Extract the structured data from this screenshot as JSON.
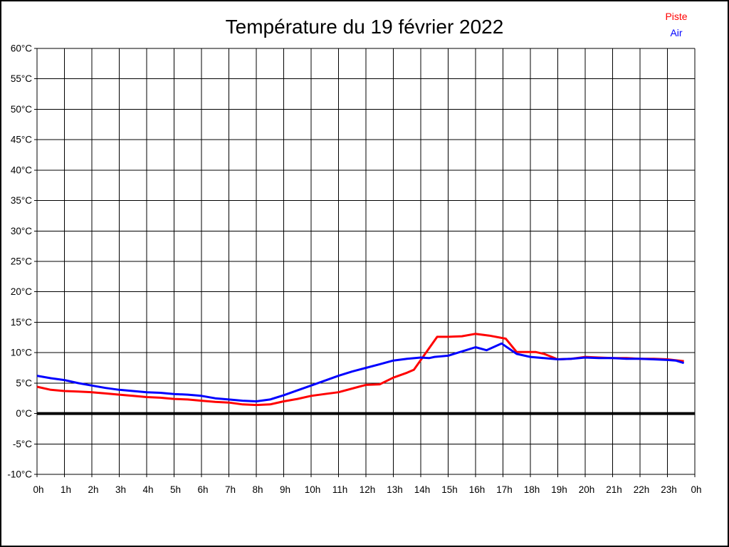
{
  "page": {
    "title": "Température du 19 février 2022"
  },
  "legend": {
    "items": [
      {
        "label": "Piste",
        "color": "#ff0000"
      },
      {
        "label": "Air",
        "color": "#0000ff"
      }
    ]
  },
  "chart_data": {
    "type": "line",
    "title": "Température du 19 février 2022",
    "xlabel": "",
    "ylabel": "",
    "x_unit": "h",
    "y_unit": "°C",
    "x_range": [
      0,
      24
    ],
    "y_range": [
      -10,
      60
    ],
    "y_step": 5,
    "grid": true,
    "grid_color": "#000000",
    "zero_line_value": 0,
    "legend_position": "top-right",
    "x_tick_labels": [
      "0h",
      "1h",
      "2h",
      "3h",
      "4h",
      "5h",
      "6h",
      "7h",
      "8h",
      "9h",
      "10h",
      "11h",
      "12h",
      "13h",
      "14h",
      "15h",
      "16h",
      "17h",
      "18h",
      "19h",
      "20h",
      "21h",
      "22h",
      "23h",
      "0h"
    ],
    "y_tick_labels": [
      "60°C",
      "55°C",
      "50°C",
      "45°C",
      "40°C",
      "35°C",
      "30°C",
      "25°C",
      "20°C",
      "15°C",
      "10°C",
      "5°C",
      "0°C",
      "-5°C",
      "-10°C"
    ],
    "series": [
      {
        "name": "Piste",
        "color": "#ff0000",
        "points": [
          [
            0,
            4.4
          ],
          [
            0.5,
            3.9
          ],
          [
            1,
            3.7
          ],
          [
            1.5,
            3.6
          ],
          [
            2,
            3.5
          ],
          [
            2.5,
            3.3
          ],
          [
            3,
            3.1
          ],
          [
            3.5,
            2.9
          ],
          [
            4,
            2.7
          ],
          [
            4.5,
            2.6
          ],
          [
            5,
            2.4
          ],
          [
            5.5,
            2.3
          ],
          [
            6,
            2.1
          ],
          [
            6.5,
            1.9
          ],
          [
            7,
            1.8
          ],
          [
            7.5,
            1.5
          ],
          [
            8,
            1.4
          ],
          [
            8.5,
            1.5
          ],
          [
            9,
            2.0
          ],
          [
            9.5,
            2.4
          ],
          [
            10,
            2.9
          ],
          [
            10.5,
            3.2
          ],
          [
            11,
            3.5
          ],
          [
            11.5,
            4.1
          ],
          [
            12,
            4.7
          ],
          [
            12.5,
            4.8
          ],
          [
            13,
            5.9
          ],
          [
            13.5,
            6.7
          ],
          [
            13.75,
            7.2
          ],
          [
            14.6,
            12.6
          ],
          [
            15,
            12.6
          ],
          [
            15.5,
            12.7
          ],
          [
            16,
            13.1
          ],
          [
            16.5,
            12.8
          ],
          [
            17.1,
            12.3
          ],
          [
            17.5,
            10.1
          ],
          [
            18.2,
            10.1
          ],
          [
            18.5,
            9.8
          ],
          [
            19,
            8.9
          ],
          [
            19.5,
            9.0
          ],
          [
            20,
            9.3
          ],
          [
            20.5,
            9.2
          ],
          [
            21,
            9.1
          ],
          [
            21.5,
            9.1
          ],
          [
            22,
            9.0
          ],
          [
            22.5,
            9.0
          ],
          [
            23,
            8.9
          ],
          [
            23.6,
            8.6
          ]
        ]
      },
      {
        "name": "Air",
        "color": "#0000ff",
        "points": [
          [
            0,
            6.2
          ],
          [
            0.5,
            5.8
          ],
          [
            1,
            5.5
          ],
          [
            1.5,
            5.0
          ],
          [
            2,
            4.6
          ],
          [
            2.5,
            4.2
          ],
          [
            3,
            3.9
          ],
          [
            3.5,
            3.7
          ],
          [
            4,
            3.5
          ],
          [
            4.5,
            3.4
          ],
          [
            5,
            3.2
          ],
          [
            5.5,
            3.1
          ],
          [
            6,
            2.9
          ],
          [
            6.5,
            2.5
          ],
          [
            7,
            2.3
          ],
          [
            7.5,
            2.1
          ],
          [
            8,
            2.0
          ],
          [
            8.5,
            2.3
          ],
          [
            9,
            3.0
          ],
          [
            9.5,
            3.8
          ],
          [
            10,
            4.6
          ],
          [
            10.5,
            5.4
          ],
          [
            11,
            6.2
          ],
          [
            11.5,
            6.9
          ],
          [
            12,
            7.5
          ],
          [
            12.5,
            8.1
          ],
          [
            13,
            8.7
          ],
          [
            13.5,
            9.0
          ],
          [
            14,
            9.2
          ],
          [
            14.3,
            9.1
          ],
          [
            14.5,
            9.3
          ],
          [
            15,
            9.5
          ],
          [
            15.5,
            10.2
          ],
          [
            16,
            10.9
          ],
          [
            16.4,
            10.4
          ],
          [
            16.95,
            11.5
          ],
          [
            17.5,
            9.8
          ],
          [
            18,
            9.3
          ],
          [
            18.5,
            9.1
          ],
          [
            19,
            8.9
          ],
          [
            19.5,
            9.0
          ],
          [
            20,
            9.2
          ],
          [
            20.5,
            9.1
          ],
          [
            21,
            9.1
          ],
          [
            21.5,
            9.0
          ],
          [
            22,
            9.0
          ],
          [
            22.5,
            8.9
          ],
          [
            23,
            8.8
          ],
          [
            23.3,
            8.7
          ],
          [
            23.6,
            8.3
          ]
        ]
      }
    ]
  }
}
